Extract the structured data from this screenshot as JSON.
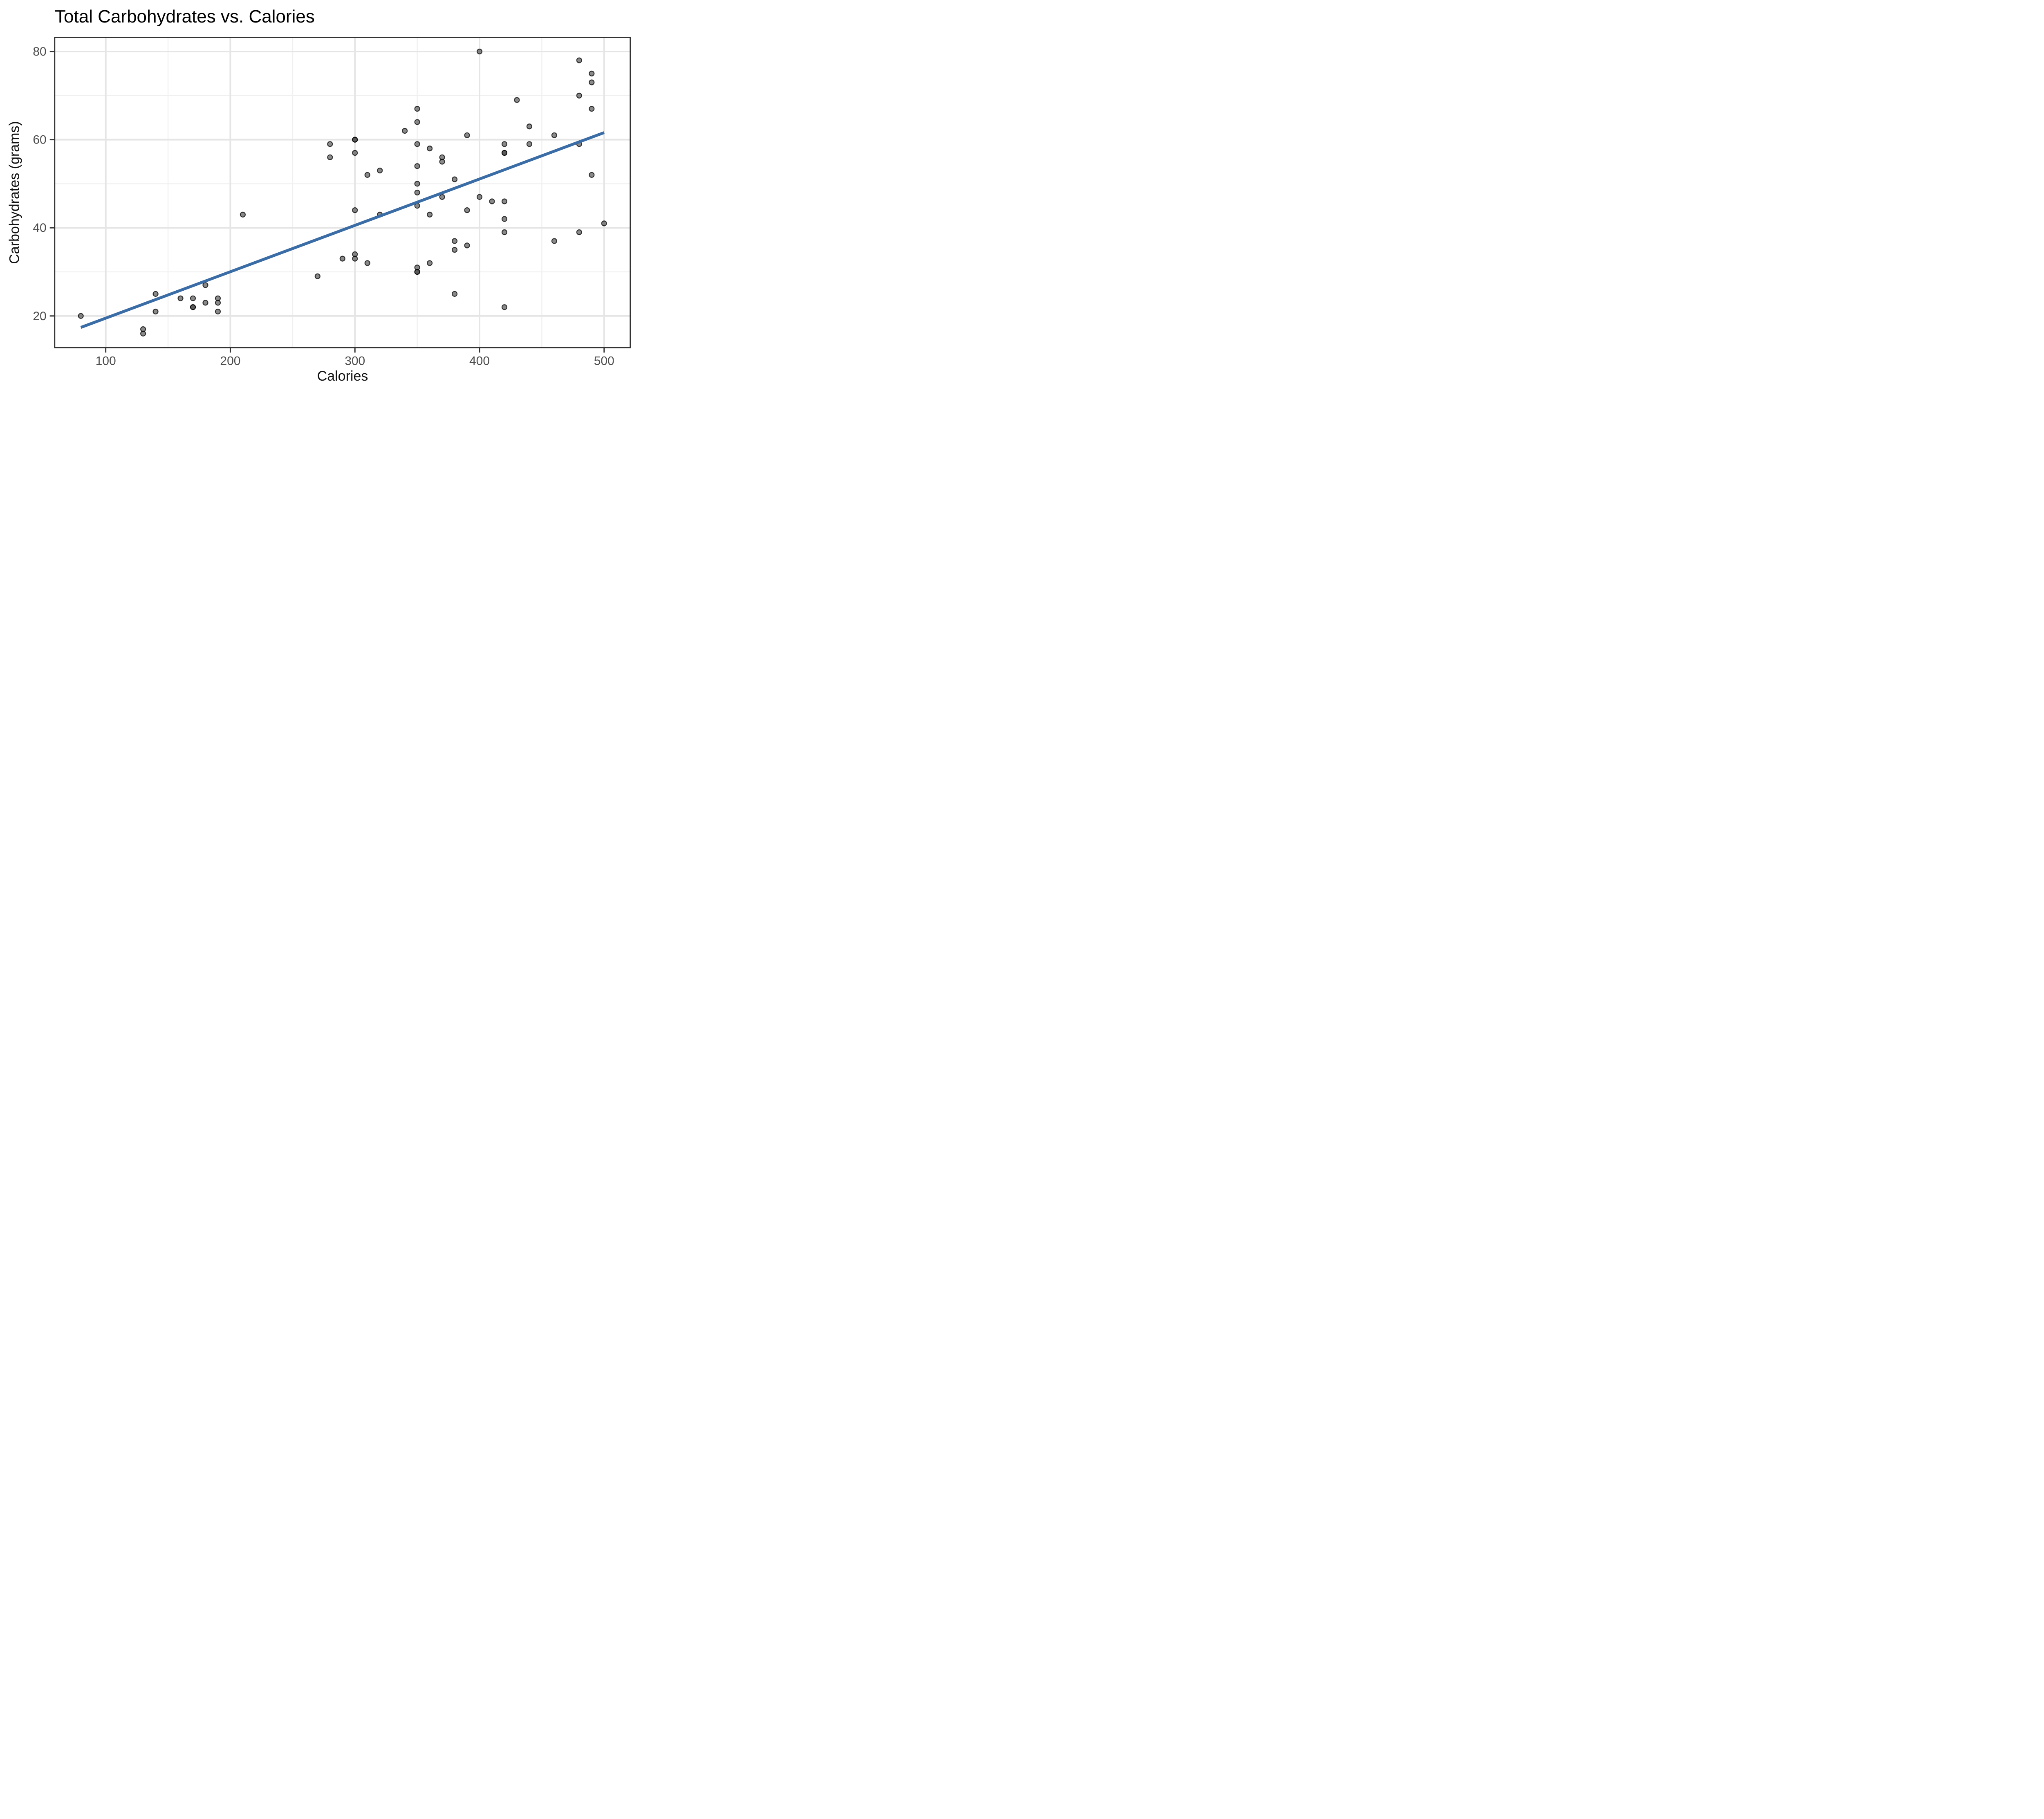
{
  "page": {
    "title": "Total Carbohydrates vs. Calories"
  },
  "chart_data": {
    "type": "scatter",
    "title": "Total Carbohydrates vs. Calories",
    "xlabel": "Calories",
    "ylabel": "Carbohydrates (grams)",
    "xlim": [
      59,
      521
    ],
    "ylim": [
      12.8,
      83.2
    ],
    "x_major_ticks": [
      100,
      200,
      300,
      400,
      500
    ],
    "x_minor_ticks": [
      150,
      250,
      350,
      450
    ],
    "y_major_ticks": [
      20,
      40,
      60,
      80
    ],
    "y_minor_ticks": [
      30,
      50,
      70
    ],
    "grid": "major and minor gridlines on white panel, dark panel border, outward axis ticks",
    "legend_position": "none",
    "points_note": "x = Calories, y = Carbohydrates (grams). Darker dots in the image are two exactly-overlapping semi-transparent points; those pairs are listed twice.",
    "points": [
      [
        80,
        20
      ],
      [
        130,
        17
      ],
      [
        130,
        16
      ],
      [
        140,
        25
      ],
      [
        140,
        21
      ],
      [
        160,
        24
      ],
      [
        170,
        24
      ],
      [
        170,
        22
      ],
      [
        170,
        22
      ],
      [
        180,
        27
      ],
      [
        180,
        23
      ],
      [
        190,
        24
      ],
      [
        190,
        23
      ],
      [
        190,
        21
      ],
      [
        210,
        43
      ],
      [
        270,
        29
      ],
      [
        280,
        59
      ],
      [
        280,
        56
      ],
      [
        290,
        33
      ],
      [
        300,
        60
      ],
      [
        300,
        60
      ],
      [
        300,
        57
      ],
      [
        300,
        44
      ],
      [
        300,
        34
      ],
      [
        300,
        33
      ],
      [
        310,
        52
      ],
      [
        310,
        32
      ],
      [
        320,
        53
      ],
      [
        320,
        43
      ],
      [
        340,
        62
      ],
      [
        350,
        67
      ],
      [
        350,
        64
      ],
      [
        350,
        59
      ],
      [
        350,
        54
      ],
      [
        350,
        50
      ],
      [
        350,
        48
      ],
      [
        350,
        45
      ],
      [
        350,
        31
      ],
      [
        350,
        30
      ],
      [
        350,
        30
      ],
      [
        360,
        58
      ],
      [
        360,
        43
      ],
      [
        360,
        32
      ],
      [
        370,
        56
      ],
      [
        370,
        55
      ],
      [
        370,
        47
      ],
      [
        380,
        51
      ],
      [
        380,
        37
      ],
      [
        380,
        35
      ],
      [
        380,
        25
      ],
      [
        390,
        61
      ],
      [
        390,
        44
      ],
      [
        390,
        36
      ],
      [
        400,
        80
      ],
      [
        400,
        47
      ],
      [
        410,
        46
      ],
      [
        420,
        59
      ],
      [
        420,
        57
      ],
      [
        420,
        57
      ],
      [
        420,
        46
      ],
      [
        420,
        42
      ],
      [
        420,
        39
      ],
      [
        420,
        22
      ],
      [
        430,
        69
      ],
      [
        440,
        63
      ],
      [
        440,
        59
      ],
      [
        460,
        61
      ],
      [
        460,
        37
      ],
      [
        480,
        78
      ],
      [
        480,
        70
      ],
      [
        480,
        59
      ],
      [
        480,
        39
      ],
      [
        490,
        75
      ],
      [
        490,
        73
      ],
      [
        490,
        67
      ],
      [
        490,
        52
      ],
      [
        500,
        41
      ]
    ],
    "trend_line": {
      "type": "linear fit",
      "x1": 80,
      "y1": 17.4,
      "x2": 500,
      "y2": 61.6
    },
    "colors": {
      "background": "#ffffff",
      "panel_border": "#333333",
      "grid_major": "#e5e5e5",
      "grid_minor": "#f0f0f0",
      "tick_mark": "#333333",
      "tick_label": "#4d4d4d",
      "title_text": "#000000",
      "axis_title_text": "#111111",
      "point_fill": "#3c3c3c",
      "point_fill_alpha": 0.6,
      "point_stroke": "#000000",
      "point_stroke_alpha": 0.75,
      "trend_blue": "#3A6CA6"
    }
  }
}
